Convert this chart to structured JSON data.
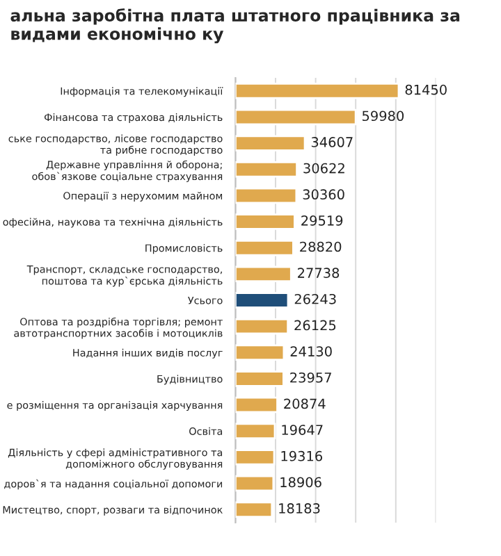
{
  "chart_data": {
    "type": "bar",
    "orientation": "horizontal",
    "title": "альна заробітна плата штатного працівника за видами економічно ку",
    "categories": [
      "Інформація та телекомунікації",
      "Фінансова та страхова діяльність",
      "ське господарство, лісове господарство та рибне господарство",
      "Державне управління й оборона; обов`язкове соціальне страхування",
      "Операції з нерухомим майном",
      "офесійна, наукова та технічна діяльність",
      "Промисловість",
      "Транспорт, складське господарство, поштова та кур`єрська діяльність",
      "Усього",
      "Оптова та роздрібна торгівля; ремонт автотранспортних засобів і мотоциклів",
      "Надання інших видів послуг",
      "Будівництво",
      "е розміщення та організація харчування",
      "Освіта",
      "Діяльність у сфері адміністративного та допоміжного обслуговування",
      "доров`я та надання соціальної допомоги",
      "Мистецтво, спорт, розваги та відпочинок"
    ],
    "values": [
      81450,
      59980,
      34607,
      30622,
      30360,
      29519,
      28820,
      27738,
      26243,
      26125,
      24130,
      23957,
      20874,
      19647,
      19316,
      18906,
      18183
    ],
    "colors": [
      "#e0a94e",
      "#e0a94e",
      "#e0a94e",
      "#e0a94e",
      "#e0a94e",
      "#e0a94e",
      "#e0a94e",
      "#e0a94e",
      "#1f4e79",
      "#e0a94e",
      "#e0a94e",
      "#e0a94e",
      "#e0a94e",
      "#e0a94e",
      "#e0a94e",
      "#e0a94e",
      "#e0a94e"
    ],
    "xlim": [
      0,
      100000
    ],
    "xticks": [
      {
        "value": 0,
        "label": null
      },
      {
        "value": 20000,
        "label": null
      },
      {
        "value": 40000,
        "label": null
      },
      {
        "value": 60000,
        "label": null
      },
      {
        "value": 80000,
        "label": null
      },
      {
        "value": 100000,
        "label": null
      }
    ],
    "grid": "x",
    "tick_labels": "y",
    "data_labels": true
  }
}
